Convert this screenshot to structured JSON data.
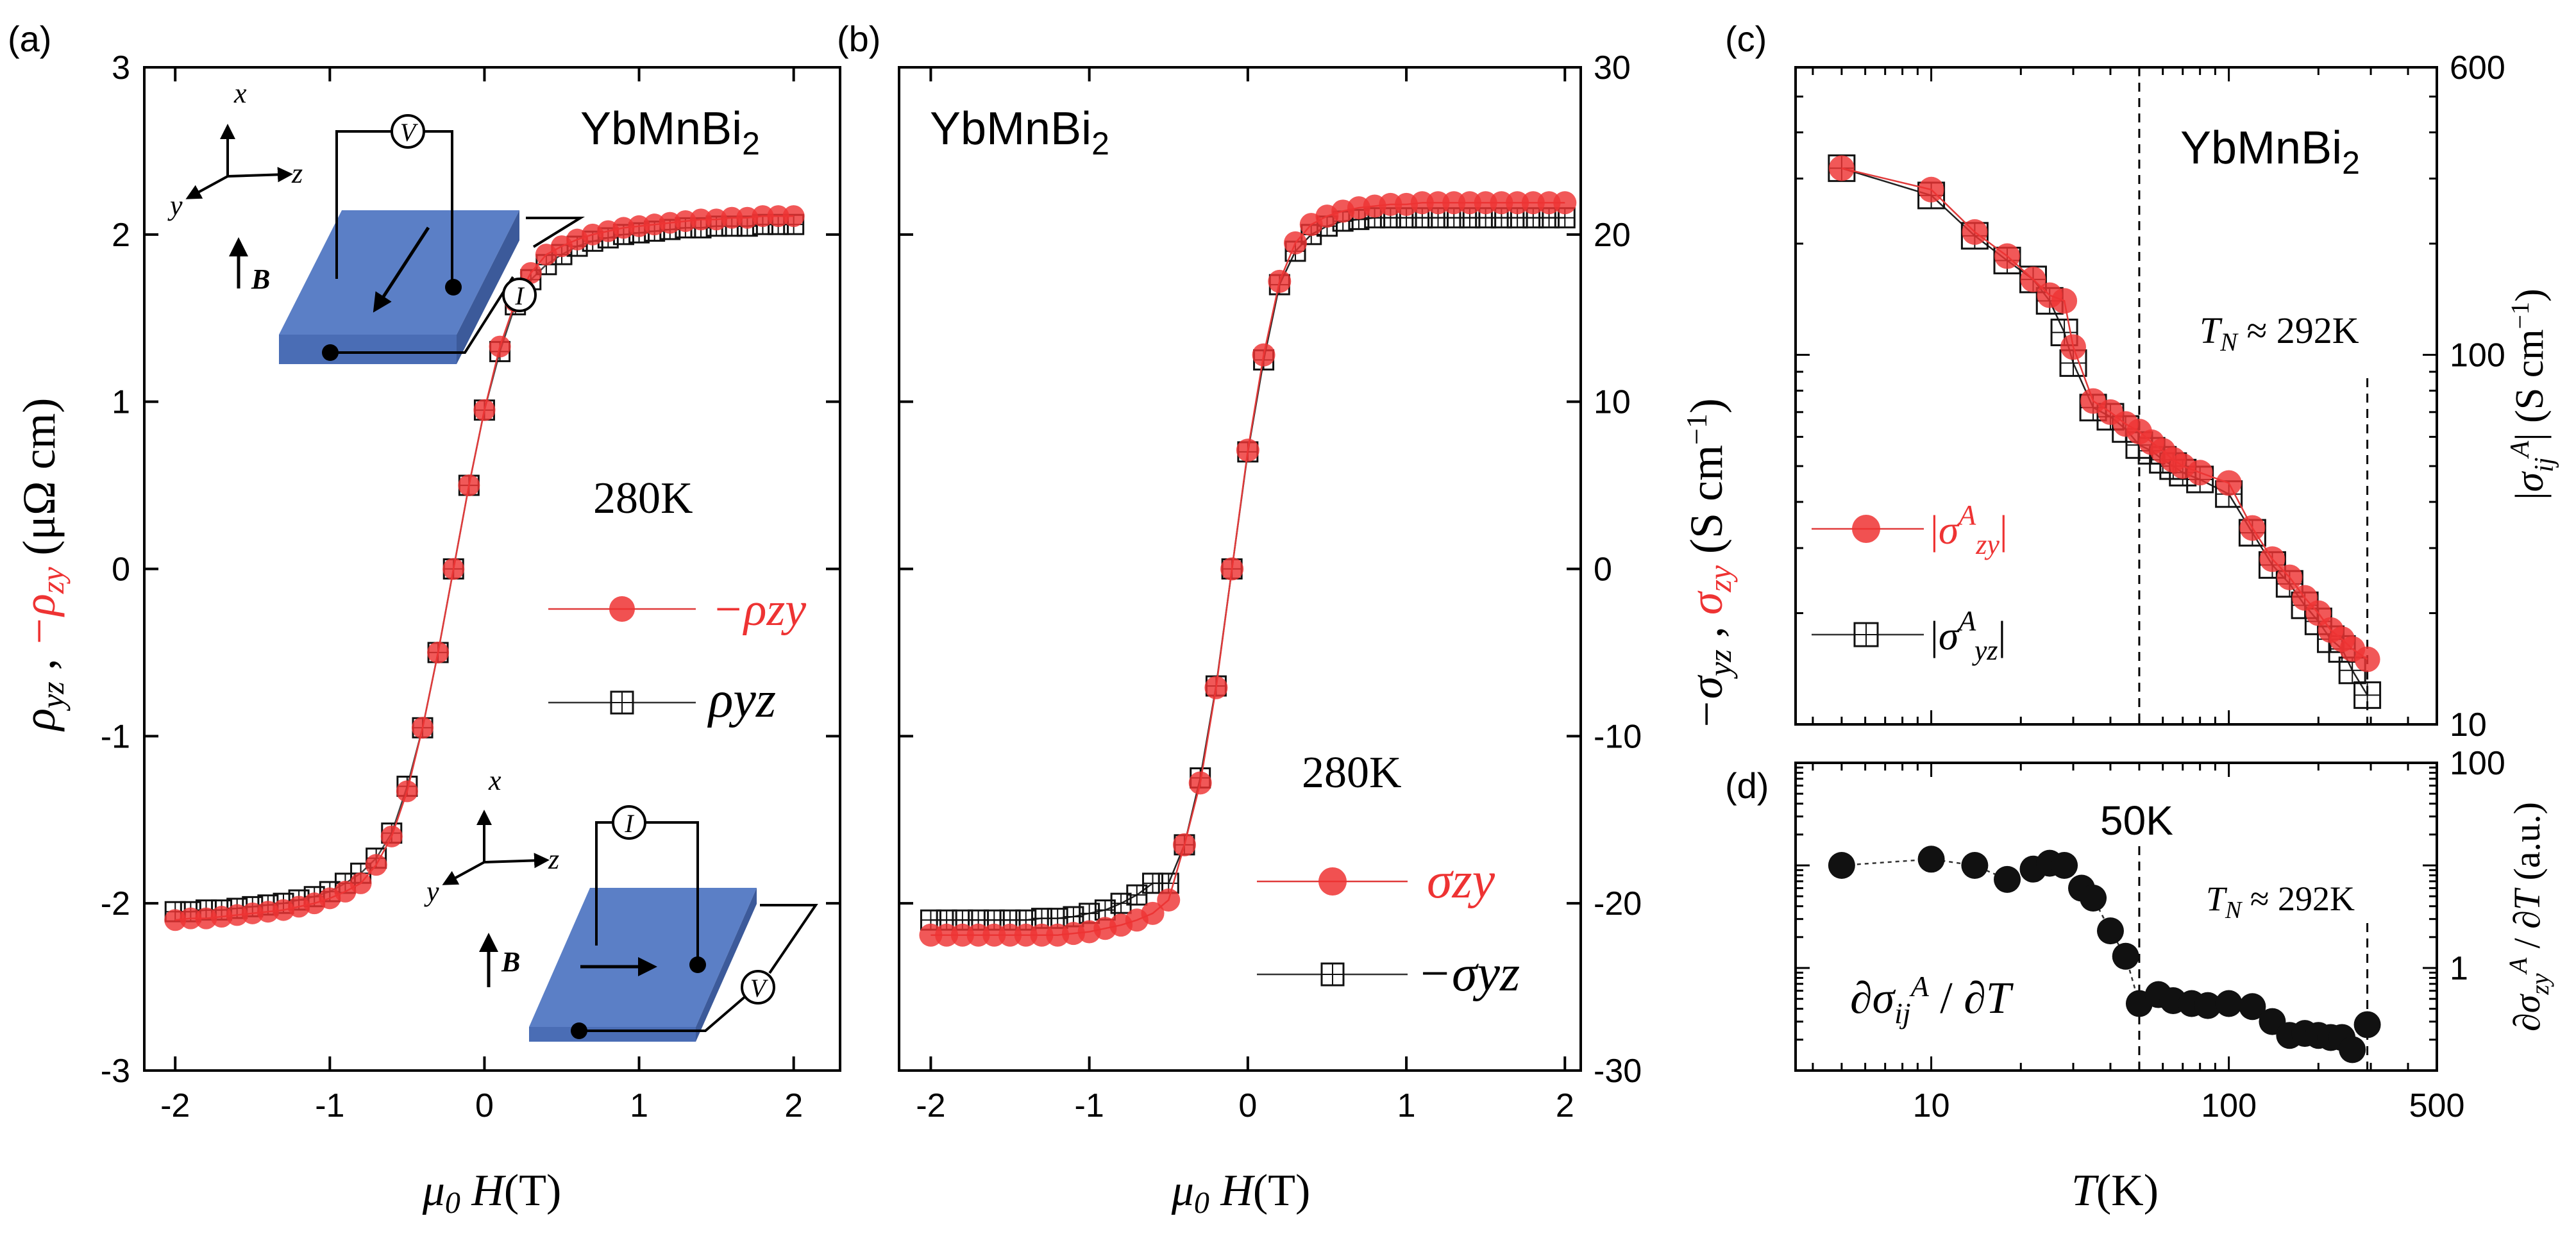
{
  "colors": {
    "red": "#ee3333",
    "redLine": "#e03a3a",
    "black": "#111111",
    "frame": "#000000",
    "device": "#5b7fc6"
  },
  "chart_data": [
    {
      "type": "scatter",
      "panel": "(a)",
      "material": "YbMnBi",
      "material_sub": "2",
      "temperature": "280K",
      "xlabel": "μ0 H (T)",
      "ylabel": "ρyz , −ρzy (μΩ cm)",
      "xlim": [
        -2.2,
        2.3
      ],
      "ylim": [
        -3,
        3
      ],
      "xticks": [
        "-2",
        "-1",
        "0",
        "1",
        "2"
      ],
      "yticks": [
        "-3",
        "-2",
        "-1",
        "0",
        "1",
        "2",
        "3"
      ],
      "series": [
        {
          "name": "−ρzy",
          "color": "red",
          "x": [
            -2.0,
            -1.9,
            -1.8,
            -1.7,
            -1.6,
            -1.5,
            -1.4,
            -1.3,
            -1.2,
            -1.1,
            -1.0,
            -0.9,
            -0.8,
            -0.7,
            -0.6,
            -0.5,
            -0.4,
            -0.3,
            -0.2,
            -0.1,
            0.0,
            0.1,
            0.2,
            0.3,
            0.4,
            0.5,
            0.6,
            0.7,
            0.8,
            0.9,
            1.0,
            1.1,
            1.2,
            1.3,
            1.4,
            1.5,
            1.6,
            1.7,
            1.8,
            1.9,
            2.0
          ],
          "y": [
            -2.1,
            -2.09,
            -2.09,
            -2.08,
            -2.07,
            -2.06,
            -2.05,
            -2.04,
            -2.02,
            -2.0,
            -1.97,
            -1.93,
            -1.88,
            -1.77,
            -1.6,
            -1.33,
            -0.95,
            -0.5,
            0.0,
            0.5,
            0.95,
            1.33,
            1.6,
            1.77,
            1.88,
            1.93,
            1.97,
            2.0,
            2.02,
            2.04,
            2.05,
            2.06,
            2.07,
            2.08,
            2.09,
            2.09,
            2.1,
            2.1,
            2.11,
            2.11,
            2.11
          ]
        },
        {
          "name": "ρyz",
          "color": "black",
          "x": [
            -2.0,
            -1.9,
            -1.8,
            -1.7,
            -1.6,
            -1.5,
            -1.4,
            -1.3,
            -1.2,
            -1.1,
            -1.0,
            -0.9,
            -0.8,
            -0.7,
            -0.6,
            -0.5,
            -0.4,
            -0.3,
            -0.2,
            -0.1,
            0.0,
            0.1,
            0.2,
            0.3,
            0.4,
            0.5,
            0.6,
            0.7,
            0.8,
            0.9,
            1.0,
            1.1,
            1.2,
            1.3,
            1.4,
            1.5,
            1.6,
            1.7,
            1.8,
            1.9,
            2.0
          ],
          "y": [
            -2.05,
            -2.05,
            -2.04,
            -2.04,
            -2.03,
            -2.02,
            -2.01,
            -2.0,
            -1.98,
            -1.96,
            -1.93,
            -1.88,
            -1.82,
            -1.73,
            -1.58,
            -1.3,
            -0.95,
            -0.5,
            0.0,
            0.5,
            0.95,
            1.3,
            1.58,
            1.73,
            1.82,
            1.88,
            1.93,
            1.96,
            1.98,
            2.0,
            2.01,
            2.02,
            2.03,
            2.04,
            2.04,
            2.05,
            2.05,
            2.05,
            2.06,
            2.06,
            2.06
          ]
        }
      ]
    },
    {
      "type": "scatter",
      "panel": "(b)",
      "material": "YbMnBi",
      "material_sub": "2",
      "temperature": "280K",
      "xlabel": "μ0 H (T)",
      "ylabel": "−σyz , σzy (S cm−1)",
      "xlim": [
        -2.2,
        2.1
      ],
      "ylim": [
        -30,
        30
      ],
      "xticks": [
        "-2",
        "-1",
        "0",
        "1",
        "2"
      ],
      "yticks": [
        "-30",
        "-20",
        "-10",
        "0",
        "10",
        "20",
        "30"
      ],
      "series": [
        {
          "name": "σzy",
          "color": "red",
          "x": [
            -2.0,
            -1.9,
            -1.8,
            -1.7,
            -1.6,
            -1.5,
            -1.4,
            -1.3,
            -1.2,
            -1.1,
            -1.0,
            -0.9,
            -0.8,
            -0.7,
            -0.6,
            -0.5,
            -0.4,
            -0.3,
            -0.2,
            -0.1,
            0.0,
            0.1,
            0.2,
            0.3,
            0.4,
            0.5,
            0.6,
            0.7,
            0.8,
            0.9,
            1.0,
            1.1,
            1.2,
            1.3,
            1.4,
            1.5,
            1.6,
            1.7,
            1.8,
            1.9,
            2.0
          ],
          "y": [
            -21.9,
            -21.9,
            -21.9,
            -21.9,
            -21.9,
            -21.9,
            -21.9,
            -21.9,
            -21.9,
            -21.8,
            -21.7,
            -21.5,
            -21.3,
            -21.0,
            -20.6,
            -19.8,
            -16.5,
            -12.8,
            -7.1,
            0.0,
            7.1,
            12.8,
            17.2,
            19.5,
            20.6,
            21.1,
            21.4,
            21.6,
            21.7,
            21.8,
            21.8,
            21.9,
            21.9,
            21.9,
            21.9,
            21.9,
            21.9,
            21.9,
            21.9,
            21.9,
            21.9
          ]
        },
        {
          "name": "−σyz",
          "color": "black",
          "x": [
            -2.0,
            -1.9,
            -1.8,
            -1.7,
            -1.6,
            -1.5,
            -1.4,
            -1.3,
            -1.2,
            -1.1,
            -1.0,
            -0.9,
            -0.8,
            -0.7,
            -0.6,
            -0.5,
            -0.4,
            -0.3,
            -0.2,
            -0.1,
            0.0,
            0.1,
            0.2,
            0.3,
            0.4,
            0.5,
            0.6,
            0.7,
            0.8,
            0.9,
            1.0,
            1.1,
            1.2,
            1.3,
            1.4,
            1.5,
            1.6,
            1.7,
            1.8,
            1.9,
            2.0
          ],
          "y": [
            -21.0,
            -21.0,
            -21.0,
            -21.0,
            -21.0,
            -21.0,
            -21.0,
            -20.9,
            -20.9,
            -20.8,
            -20.6,
            -20.4,
            -20.0,
            -19.5,
            -18.8,
            -18.8,
            -16.5,
            -12.5,
            -7.0,
            0.0,
            7.0,
            12.5,
            17.0,
            19.0,
            20.0,
            20.5,
            20.8,
            20.9,
            21.0,
            21.0,
            21.0,
            21.0,
            21.0,
            21.0,
            21.0,
            21.0,
            21.0,
            21.0,
            21.0,
            21.0,
            21.0
          ]
        }
      ]
    },
    {
      "type": "scatter",
      "panel": "(c)",
      "material": "YbMnBi",
      "material_sub": "2",
      "annotation": "TN ≈ 292K",
      "xscale": "log",
      "yscale": "log",
      "xlim": [
        3.5,
        500
      ],
      "ylim": [
        10,
        600
      ],
      "ylabel": "|σijA| (S cm−1)",
      "yticks": [
        "10",
        "100",
        "600"
      ],
      "vlines": [
        50,
        292
      ],
      "series": [
        {
          "name": "|σAzy|",
          "color": "red",
          "x": [
            5,
            10,
            14,
            18,
            22,
            25,
            28,
            30,
            35,
            40,
            45,
            50,
            55,
            60,
            65,
            70,
            80,
            100,
            120,
            140,
            160,
            180,
            200,
            220,
            240,
            260,
            292
          ],
          "y": [
            320,
            280,
            215,
            185,
            160,
            145,
            140,
            105,
            75,
            70,
            65,
            62,
            58,
            55,
            52,
            50,
            48,
            45,
            34,
            28,
            25,
            22,
            20,
            18,
            17,
            16,
            15
          ]
        },
        {
          "name": "|σAyz|",
          "color": "black",
          "x": [
            5,
            10,
            14,
            18,
            22,
            25,
            28,
            30,
            35,
            40,
            45,
            50,
            55,
            60,
            65,
            70,
            80,
            100,
            120,
            140,
            160,
            180,
            200,
            220,
            240,
            260,
            292
          ],
          "y": [
            320,
            270,
            210,
            180,
            160,
            140,
            115,
            95,
            72,
            68,
            63,
            57,
            55,
            52,
            50,
            48,
            46,
            42,
            33,
            27,
            24,
            21,
            19,
            17,
            16,
            14,
            12
          ]
        }
      ]
    },
    {
      "type": "scatter",
      "panel": "(d)",
      "annotation_left": "50K",
      "annotation_right": "TN ≈ 292K",
      "formula": "∂σijA / ∂T",
      "xscale": "log",
      "yscale": "log",
      "xlim": [
        3.5,
        500
      ],
      "ylim": [
        0.1,
        100
      ],
      "xlabel": "T (K)",
      "ylabel": "∂σzyA / ∂T (a.u.)",
      "xticks": [
        "10",
        "100",
        "500"
      ],
      "yticks": [
        "1",
        "100"
      ],
      "vlines": [
        50,
        292
      ],
      "series": [
        {
          "name": "∂σijA/∂T",
          "color": "black",
          "x": [
            5,
            10,
            14,
            18,
            22,
            25,
            28,
            32,
            35,
            40,
            45,
            50,
            58,
            65,
            75,
            85,
            100,
            120,
            140,
            160,
            180,
            200,
            220,
            240,
            260,
            292
          ],
          "y": [
            10,
            11.5,
            10,
            7.3,
            9.2,
            10.5,
            10,
            6,
            4.8,
            2.3,
            1.3,
            0.45,
            0.55,
            0.48,
            0.45,
            0.43,
            0.45,
            0.42,
            0.3,
            0.22,
            0.23,
            0.22,
            0.21,
            0.21,
            0.16,
            0.28
          ]
        }
      ]
    }
  ],
  "legend": {
    "a1": "−ρzy",
    "a2": "ρyz",
    "b1": "σzy",
    "b2": "−σyz",
    "c1": "|σAzy|",
    "c2": "|σAyz|"
  },
  "device": {
    "axis_x": "x",
    "axis_y": "y",
    "axis_z": "z",
    "field": "B",
    "volt": "V",
    "curr": "I"
  }
}
